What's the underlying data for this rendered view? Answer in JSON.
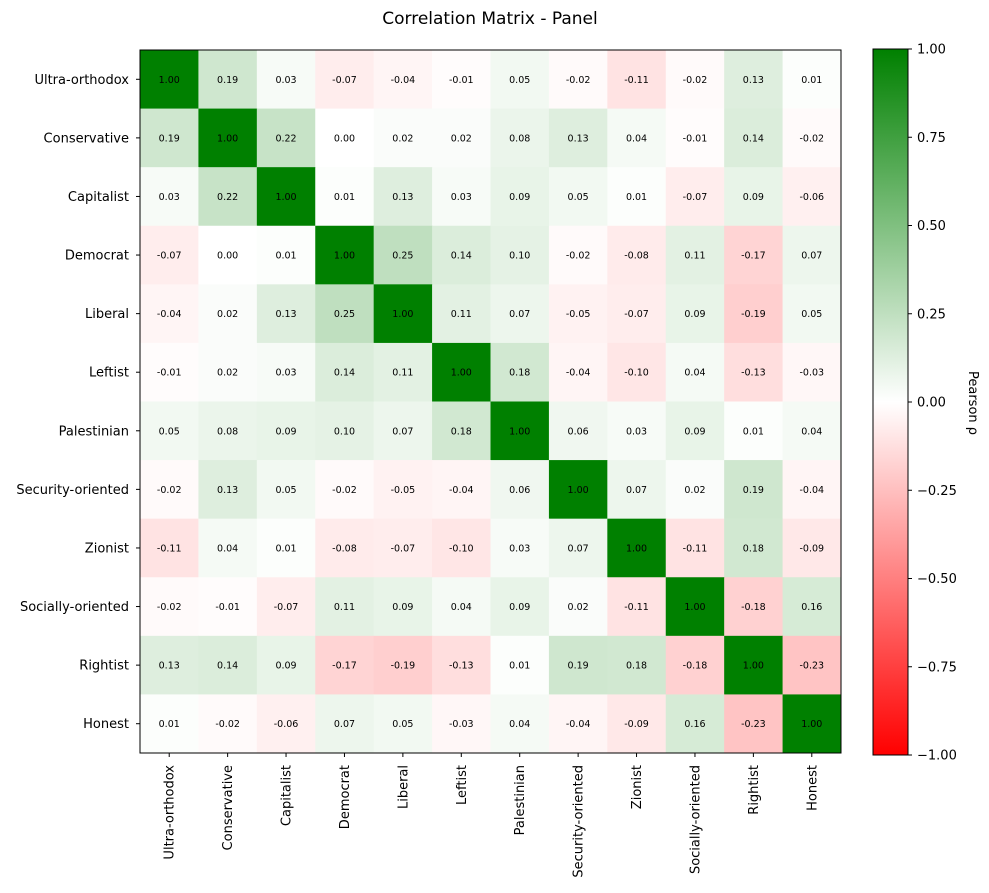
{
  "chart_data": {
    "type": "heatmap",
    "title": "Correlation Matrix - Panel",
    "labels": [
      "Ultra-orthodox",
      "Conservative",
      "Capitalist",
      "Democrat",
      "Liberal",
      "Leftist",
      "Palestinian",
      "Security-oriented",
      "Zionist",
      "Socially-oriented",
      "Rightist",
      "Honest"
    ],
    "matrix": [
      [
        1.0,
        0.19,
        0.03,
        -0.07,
        -0.04,
        -0.01,
        0.05,
        -0.02,
        -0.11,
        -0.02,
        0.13,
        0.01
      ],
      [
        0.19,
        1.0,
        0.22,
        0.0,
        0.02,
        0.02,
        0.08,
        0.13,
        0.04,
        -0.01,
        0.14,
        -0.02
      ],
      [
        0.03,
        0.22,
        1.0,
        0.01,
        0.13,
        0.03,
        0.09,
        0.05,
        0.01,
        -0.07,
        0.09,
        -0.06
      ],
      [
        -0.07,
        0.0,
        0.01,
        1.0,
        0.25,
        0.14,
        0.1,
        -0.02,
        -0.08,
        0.11,
        -0.17,
        0.07
      ],
      [
        -0.04,
        0.02,
        0.13,
        0.25,
        1.0,
        0.11,
        0.07,
        -0.05,
        -0.07,
        0.09,
        -0.19,
        0.05
      ],
      [
        -0.01,
        0.02,
        0.03,
        0.14,
        0.11,
        1.0,
        0.18,
        -0.04,
        -0.1,
        0.04,
        -0.13,
        -0.03
      ],
      [
        0.05,
        0.08,
        0.09,
        0.1,
        0.07,
        0.18,
        1.0,
        0.06,
        0.03,
        0.09,
        0.01,
        0.04
      ],
      [
        -0.02,
        0.13,
        0.05,
        -0.02,
        -0.05,
        -0.04,
        0.06,
        1.0,
        0.07,
        0.02,
        0.19,
        -0.04
      ],
      [
        -0.11,
        0.04,
        0.01,
        -0.08,
        -0.07,
        -0.1,
        0.03,
        0.07,
        1.0,
        -0.11,
        0.18,
        -0.09
      ],
      [
        -0.02,
        -0.01,
        -0.07,
        0.11,
        0.09,
        0.04,
        0.09,
        0.02,
        -0.11,
        1.0,
        -0.18,
        0.16
      ],
      [
        0.13,
        0.14,
        0.09,
        -0.17,
        -0.19,
        -0.13,
        0.01,
        0.19,
        0.18,
        -0.18,
        1.0,
        -0.23
      ],
      [
        0.01,
        -0.02,
        -0.06,
        0.07,
        0.05,
        -0.03,
        0.04,
        -0.04,
        -0.09,
        0.16,
        -0.23,
        1.0
      ]
    ],
    "value_range": [
      -1,
      1
    ],
    "colormap": {
      "low": "#ff0000",
      "mid": "#ffffff",
      "high": "#008000"
    },
    "colorbar": {
      "label": "Pearson ρ",
      "ticks": [
        1.0,
        0.75,
        0.5,
        0.25,
        0.0,
        -0.25,
        -0.5,
        -0.75,
        -1.0
      ],
      "tick_labels": [
        "1.00",
        "0.75",
        "0.50",
        "0.25",
        "0.00",
        "−0.25",
        "−0.50",
        "−0.75",
        "−1.00"
      ]
    }
  }
}
